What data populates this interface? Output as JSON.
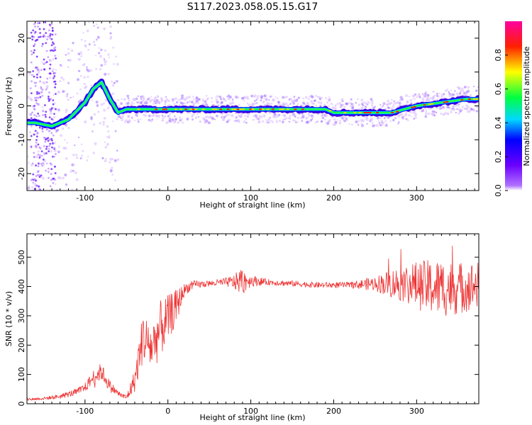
{
  "figure_title": "S117.2023.058.05.15.G17",
  "chart_data": [
    {
      "type": "heatmap",
      "xlabel": "Height of straight line (km)",
      "ylabel": "Frequency (Hz)",
      "xlim": [
        -170,
        375
      ],
      "ylim": [
        -25,
        25
      ],
      "xticks": [
        -100,
        0,
        100,
        200,
        300
      ],
      "yticks": [
        -20,
        -10,
        0,
        10,
        20
      ],
      "colorbar": {
        "label": "Normalized spectral amplitude",
        "range": [
          0,
          1
        ],
        "ticks": [
          0.0,
          0.2,
          0.4,
          0.6,
          0.8
        ],
        "colormap": [
          "#ffffff",
          "#7f00ff",
          "#0000ff",
          "#00ffff",
          "#00ff00",
          "#ffff00",
          "#ff0000",
          "#ff00ff"
        ]
      },
      "ridge": {
        "x": [
          -160,
          -140,
          -120,
          -100,
          -90,
          -80,
          -70,
          -60,
          -50,
          -40,
          -20,
          0,
          50,
          100,
          150,
          190,
          200,
          220,
          250,
          270,
          300,
          330,
          360,
          375
        ],
        "y": [
          -5,
          -6,
          -4,
          1,
          5,
          7,
          2,
          -2,
          -1,
          -1,
          -1,
          -1,
          -1,
          -1,
          -1,
          -1,
          -2,
          -2,
          -2,
          -2,
          0,
          1,
          2,
          2
        ]
      }
    },
    {
      "type": "line",
      "xlabel": "Height of straight line (km)",
      "ylabel": "SNR (10 * v/v)",
      "xlim": [
        -170,
        375
      ],
      "ylim": [
        0,
        580
      ],
      "xticks": [
        -100,
        0,
        100,
        200,
        300
      ],
      "yticks": [
        0,
        100,
        200,
        300,
        400,
        500
      ],
      "color": "#ee3333",
      "series": [
        {
          "x": [
            -170,
            -150,
            -130,
            -110,
            -100,
            -90,
            -80,
            -70,
            -60,
            -50,
            -40,
            -30,
            -20,
            -10,
            0,
            10,
            20,
            30,
            50,
            70,
            80,
            90,
            100,
            120,
            150,
            180,
            200,
            220,
            250,
            270,
            290,
            310,
            330,
            350,
            375
          ],
          "y": [
            15,
            18,
            25,
            40,
            55,
            90,
            110,
            60,
            35,
            20,
            80,
            230,
            190,
            250,
            290,
            330,
            390,
            405,
            410,
            415,
            415,
            420,
            420,
            415,
            410,
            405,
            405,
            405,
            410,
            410,
            410,
            400,
            395,
            395,
            405
          ],
          "noise": [
            5,
            5,
            8,
            12,
            15,
            25,
            30,
            20,
            10,
            10,
            40,
            90,
            80,
            100,
            80,
            60,
            20,
            15,
            10,
            15,
            25,
            50,
            20,
            10,
            10,
            10,
            10,
            10,
            25,
            50,
            70,
            90,
            100,
            90,
            80
          ]
        }
      ]
    }
  ]
}
